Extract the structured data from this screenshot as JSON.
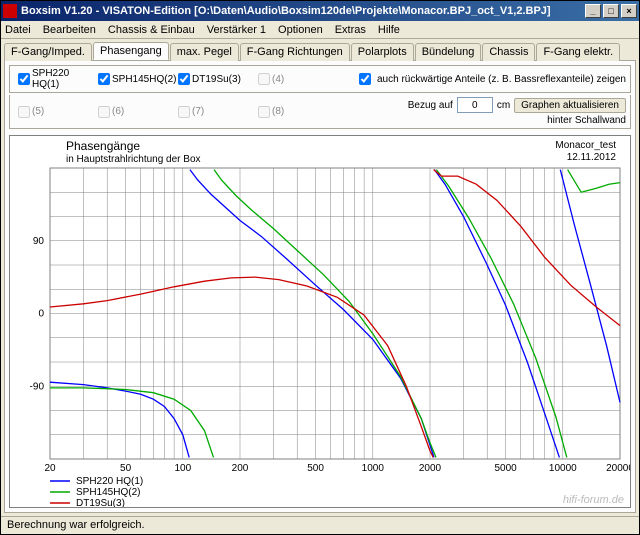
{
  "window": {
    "title": "Boxsim V1.20 - VISATON-Edition [O:\\Daten\\Audio\\Boxsim120de\\Projekte\\Monacor.BPJ_oct_V1,2.BPJ]",
    "btn_min": "_",
    "btn_max": "□",
    "btn_close": "×"
  },
  "menu": {
    "datei": "Datei",
    "bearbeiten": "Bearbeiten",
    "chassis_einbau": "Chassis & Einbau",
    "verstaerker1": "Verstärker 1",
    "optionen": "Optionen",
    "extras": "Extras",
    "hilfe": "Hilfe"
  },
  "tabs": {
    "t1": "F-Gang/Imped.",
    "t2": "Phasengang",
    "t3": "max. Pegel",
    "t4": "F-Gang Richtungen",
    "t5": "Polarplots",
    "t6": "Bündelung",
    "t7": "Chassis",
    "t8": "F-Gang elektr."
  },
  "checks": {
    "c1": {
      "label": "SPH220 HQ(1)",
      "checked": true
    },
    "c2": {
      "label": "SPH145HQ(2)",
      "checked": true
    },
    "c3": {
      "label": "DT19Su(3)",
      "checked": true
    },
    "c4": {
      "label": "(4)",
      "checked": false
    },
    "c5": {
      "label": "(5)",
      "checked": false
    },
    "c6": {
      "label": "(6)",
      "checked": false
    },
    "c7": {
      "label": "(7)",
      "checked": false
    },
    "c8": {
      "label": "(8)",
      "checked": false
    },
    "rear_label": "auch rückwärtige Anteile (z. B. Bassreflexanteile) zeigen",
    "rear_checked": true,
    "bezug_label1": "Bezug auf",
    "bezug_value": "0",
    "bezug_label2": "cm",
    "bezug_label3": "hinter Schallwand",
    "update_btn": "Graphen aktualisieren"
  },
  "chart": {
    "title": "Phasengänge",
    "subtitle": "in Hauptstrahlrichtung der Box",
    "note_name": "Monacor_test",
    "note_date": "12.11.2012",
    "x_type": "log",
    "xlim": [
      20,
      20000
    ],
    "ylim": [
      -180,
      180
    ],
    "y_ticks": [
      -90,
      0,
      90
    ],
    "y_tick_labels": [
      "-90",
      "0",
      "90"
    ],
    "x_ticks": [
      20,
      50,
      100,
      200,
      500,
      1000,
      2000,
      5000,
      10000,
      20000
    ],
    "x_tick_labels": [
      "20",
      "50",
      "100",
      "200",
      "500",
      "1000",
      "2000",
      "5000",
      "10000",
      "20000"
    ],
    "background_color": "#ffffff",
    "grid_color": "#808080",
    "axis_fontsize": 10,
    "line_width": 1.3,
    "series": [
      {
        "id": "s1",
        "label": "SPH220 HQ(1)",
        "color": "#0000ff",
        "data": [
          [
            20,
            -85
          ],
          [
            30,
            -88
          ],
          [
            40,
            -92
          ],
          [
            50,
            -96
          ],
          [
            60,
            -100
          ],
          [
            70,
            -106
          ],
          [
            80,
            -115
          ],
          [
            90,
            -130
          ],
          [
            100,
            -150
          ],
          [
            108,
            -178
          ],
          [
            109,
            178
          ],
          [
            120,
            165
          ],
          [
            140,
            148
          ],
          [
            170,
            130
          ],
          [
            200,
            115
          ],
          [
            260,
            95
          ],
          [
            350,
            68
          ],
          [
            500,
            35
          ],
          [
            700,
            5
          ],
          [
            1000,
            -32
          ],
          [
            1400,
            -80
          ],
          [
            1800,
            -130
          ],
          [
            2100,
            -178
          ],
          [
            2110,
            178
          ],
          [
            2400,
            160
          ],
          [
            3000,
            120
          ],
          [
            4000,
            60
          ],
          [
            5000,
            10
          ],
          [
            6500,
            -60
          ],
          [
            8200,
            -130
          ],
          [
            9600,
            -178
          ],
          [
            9700,
            178
          ],
          [
            11500,
            110
          ],
          [
            14000,
            35
          ],
          [
            17000,
            -40
          ],
          [
            20000,
            -110
          ]
        ]
      },
      {
        "id": "s2",
        "label": "SPH145HQ(2)",
        "color": "#00aa00",
        "data": [
          [
            20,
            -92
          ],
          [
            30,
            -92
          ],
          [
            40,
            -93
          ],
          [
            50,
            -94
          ],
          [
            70,
            -98
          ],
          [
            90,
            -106
          ],
          [
            110,
            -120
          ],
          [
            130,
            -145
          ],
          [
            145,
            -178
          ],
          [
            146,
            178
          ],
          [
            160,
            165
          ],
          [
            190,
            146
          ],
          [
            230,
            128
          ],
          [
            300,
            105
          ],
          [
            400,
            78
          ],
          [
            550,
            48
          ],
          [
            750,
            15
          ],
          [
            1000,
            -25
          ],
          [
            1400,
            -78
          ],
          [
            1800,
            -130
          ],
          [
            2000,
            -160
          ],
          [
            2150,
            -178
          ],
          [
            2160,
            178
          ],
          [
            2500,
            158
          ],
          [
            3200,
            118
          ],
          [
            4200,
            68
          ],
          [
            5500,
            12
          ],
          [
            7200,
            -55
          ],
          [
            9200,
            -128
          ],
          [
            10500,
            -178
          ],
          [
            10600,
            178
          ],
          [
            12500,
            150
          ],
          [
            15000,
            155
          ],
          [
            17500,
            160
          ],
          [
            20000,
            162
          ]
        ]
      },
      {
        "id": "s3",
        "label": "DT19Su(3)",
        "color": "#cc0000",
        "data": [
          [
            20,
            8
          ],
          [
            30,
            12
          ],
          [
            40,
            16
          ],
          [
            60,
            24
          ],
          [
            90,
            33
          ],
          [
            130,
            40
          ],
          [
            180,
            44
          ],
          [
            240,
            45
          ],
          [
            320,
            42
          ],
          [
            450,
            34
          ],
          [
            650,
            20
          ],
          [
            900,
            -2
          ],
          [
            1200,
            -40
          ],
          [
            1500,
            -90
          ],
          [
            1800,
            -140
          ],
          [
            2000,
            -170
          ],
          [
            2080,
            -178
          ],
          [
            2090,
            178
          ],
          [
            2300,
            170
          ],
          [
            2800,
            170
          ],
          [
            3500,
            160
          ],
          [
            4500,
            140
          ],
          [
            6000,
            108
          ],
          [
            8000,
            70
          ],
          [
            11000,
            35
          ],
          [
            15000,
            8
          ],
          [
            20000,
            -15
          ]
        ]
      }
    ],
    "legend": [
      {
        "c": "#0000ff",
        "l": "SPH220 HQ(1)"
      },
      {
        "c": "#00aa00",
        "l": "SPH145HQ(2)"
      },
      {
        "c": "#cc0000",
        "l": "DT19Su(3)"
      }
    ]
  },
  "status": {
    "text": "Berechnung war erfolgreich."
  },
  "watermark": "hifi-forum.de"
}
